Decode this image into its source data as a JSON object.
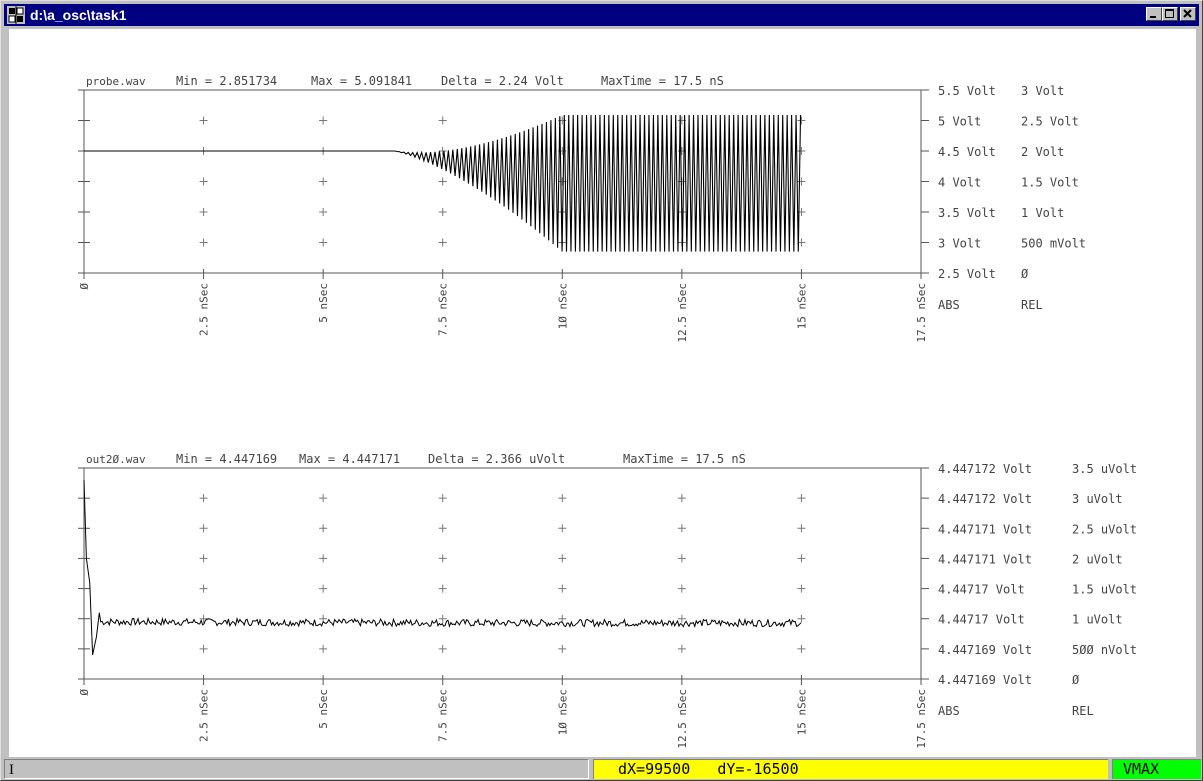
{
  "window": {
    "title": "d:\\a_osc\\task1",
    "buttons": [
      "minimize",
      "maximize",
      "close"
    ]
  },
  "plots": [
    {
      "header": {
        "file": "probe.wav",
        "min": "Min = 2.851734",
        "max": "Max = 5.091841",
        "delta": "Delta = 2.24 Volt",
        "maxtime": "MaxTime = 17.5 nS"
      },
      "right_scale": {
        "abs": [
          "5.5 Volt",
          "5 Volt",
          "4.5 Volt",
          "4 Volt",
          "3.5 Volt",
          "3 Volt",
          "2.5 Volt"
        ],
        "rel": [
          "3 Volt",
          "2.5 Volt",
          "2 Volt",
          "1.5 Volt",
          "1 Volt",
          "500 mVolt",
          "Ø"
        ],
        "abs_label": "ABS",
        "rel_label": "REL"
      },
      "x_ticks": [
        "Ø",
        "2.5 nSec",
        "5 nSec",
        "7.5 nSec",
        "1Ø nSec",
        "12.5 nSec",
        "15 nSec",
        "17.5 nSec"
      ]
    },
    {
      "header": {
        "file": "out2Ø.wav",
        "min": "Min = 4.447169",
        "max": "Max = 4.447171",
        "delta": "Delta = 2.366 uVolt",
        "maxtime": "MaxTime = 17.5 nS"
      },
      "right_scale": {
        "abs": [
          "4.447172 Volt",
          "4.447172 Volt",
          "4.447171 Volt",
          "4.447171 Volt",
          "4.44717 Volt",
          "4.44717 Volt",
          "4.447169 Volt",
          "4.447169 Volt"
        ],
        "rel": [
          "3.5 uVolt",
          "3 uVolt",
          "2.5 uVolt",
          "2 uVolt",
          "1.5 uVolt",
          "1 uVolt",
          "5ØØ nVolt",
          "Ø"
        ],
        "abs_label": "ABS",
        "rel_label": "REL"
      },
      "x_ticks": [
        "Ø",
        "2.5 nSec",
        "5 nSec",
        "7.5 nSec",
        "1Ø nSec",
        "12.5 nSec",
        "15 nSec",
        "17.5 nSec"
      ]
    }
  ],
  "chart_data": [
    {
      "type": "line",
      "title": "probe.wav",
      "xlabel": "nSec",
      "ylabel": "Volt",
      "xlim": [
        0,
        17.5
      ],
      "ylim": [
        2.5,
        5.5
      ],
      "series": [
        {
          "name": "probe.wav",
          "description_points": [
            {
              "x": 0,
              "y": 4.5
            },
            {
              "x": 6.5,
              "y": 4.5
            },
            {
              "x": 10,
              "y": 5.09
            },
            {
              "x": 10,
              "y": 2.85
            },
            {
              "x": 15,
              "y": 5.09
            },
            {
              "x": 15,
              "y": 2.85
            }
          ]
        }
      ]
    },
    {
      "type": "line",
      "title": "out2Ø.wav",
      "xlabel": "nSec",
      "ylabel": "Volt",
      "xlim": [
        0,
        17.5
      ],
      "ylim": [
        4.447169,
        4.4471725
      ],
      "series": [
        {
          "name": "out2Ø.wav",
          "description_points": [
            {
              "x": 0,
              "y": 4.4471723
            },
            {
              "x": 0.1,
              "y": 4.4471705
            },
            {
              "x": 0.3,
              "y": 4.4471696
            },
            {
              "x": 1,
              "y": 4.44717
            },
            {
              "x": 15,
              "y": 4.4471699
            }
          ]
        }
      ]
    }
  ],
  "statusbar": {
    "left": "I",
    "delta": "dX=99500   dY=-16500",
    "mode": "VMAX"
  }
}
